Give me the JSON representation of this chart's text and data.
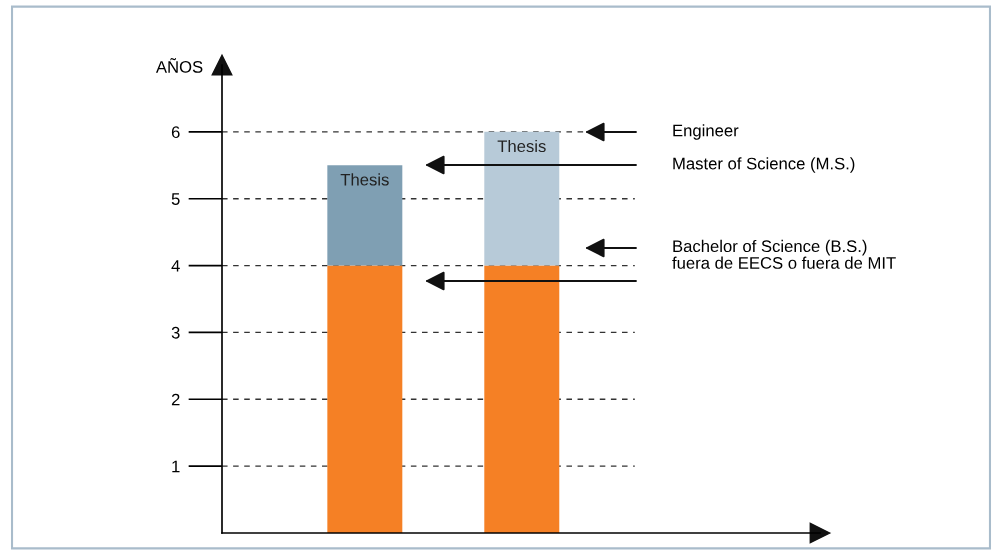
{
  "chart_data": {
    "type": "bar",
    "stacked": true,
    "ylabel": "AÑOS",
    "categories": [
      null,
      null
    ],
    "series": [
      {
        "color": "#f58025",
        "values": [
          4,
          4
        ]
      },
      {
        "colors": [
          "#7f9fb3",
          "#b7cad8"
        ],
        "values": [
          1.5,
          2
        ],
        "value_labels": [
          "Thesis",
          "Thesis"
        ]
      }
    ],
    "ylim": [
      0,
      7
    ],
    "yticks": [
      1,
      2,
      3,
      4,
      5,
      6
    ],
    "grid": "y",
    "annotations": [
      "Engineer",
      "Master of Science (M.S.)",
      "Bachelor of Science (B.S.)\nfuera de EECS o fuera de MIT"
    ]
  }
}
